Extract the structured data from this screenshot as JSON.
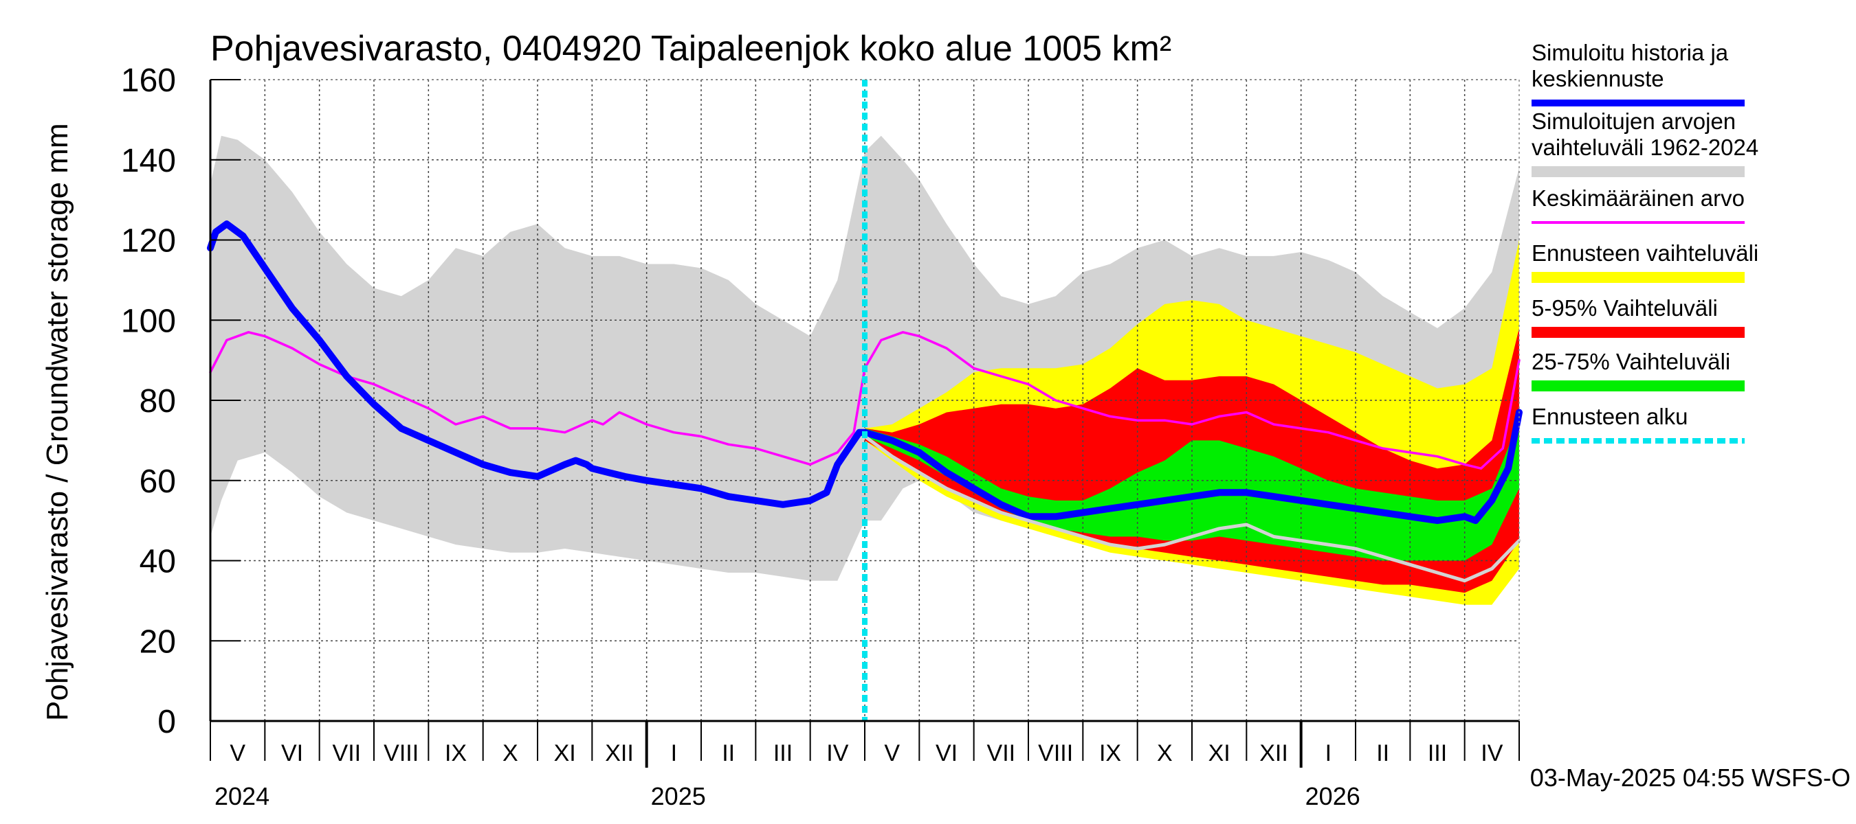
{
  "chart_data": {
    "type": "area",
    "title": "Pohjavesivarasto, 0404920 Taipaleenjok koko alue 1005 km²",
    "ylabel": "Pohjavesivarasto / Groundwater storage   mm",
    "ylim": [
      0,
      160
    ],
    "yticks": [
      0,
      20,
      40,
      60,
      80,
      100,
      120,
      140,
      160
    ],
    "x_range_months": [
      0,
      24
    ],
    "x_axis_note": "months since 2024-04-10",
    "forecast_start_month": 12,
    "month_labels": [
      "V",
      "VI",
      "VII",
      "VIII",
      "IX",
      "X",
      "XI",
      "XII",
      "I",
      "II",
      "III",
      "IV",
      "V",
      "VI",
      "VII",
      "VIII",
      "IX",
      "X",
      "XI",
      "XII",
      "I",
      "II",
      "III",
      "IV"
    ],
    "month_label_positions": [
      0.5,
      1.5,
      2.5,
      3.5,
      4.5,
      5.5,
      6.5,
      7.5,
      8.5,
      9.5,
      10.5,
      11.5,
      12.5,
      13.5,
      14.5,
      15.5,
      16.5,
      17.5,
      18.5,
      19.5,
      20.5,
      21.5,
      22.5,
      23.5
    ],
    "year_labels": [
      {
        "label": "2024",
        "month": 0
      },
      {
        "label": "2025",
        "month": 8
      },
      {
        "label": "2026",
        "month": 20
      }
    ],
    "year_separators": [
      8,
      20
    ],
    "timestamp": "03-May-2025 04:55 WSFS-O",
    "legend": [
      {
        "label": "Simuloitu historia ja keskiennuste",
        "lines": [
          "Simuloitu historia ja",
          "keskiennuste"
        ],
        "color": "#0000ff",
        "style": "thick"
      },
      {
        "label": "Simuloitujen arvojen vaihteluväli 1962-2024",
        "lines": [
          "Simuloitujen arvojen",
          "vaihteluväli 1962-2024"
        ],
        "color": "#d3d3d3",
        "style": "band"
      },
      {
        "label": "Keskimääräinen arvo",
        "lines": [
          "Keskimääräinen arvo"
        ],
        "color": "#ff00ff",
        "style": "line"
      },
      {
        "label": "Ennusteen vaihteluväli",
        "lines": [
          "Ennusteen vaihteluväli"
        ],
        "color": "#ffff00",
        "style": "band"
      },
      {
        "label": "5-95% Vaihteluväli",
        "lines": [
          "5-95% Vaihteluväli"
        ],
        "color": "#ff0000",
        "style": "band"
      },
      {
        "label": "25-75% Vaihteluväli",
        "lines": [
          "25-75% Vaihteluväli"
        ],
        "color": "#00ee00",
        "style": "band"
      },
      {
        "label": "Ennusteen alku",
        "lines": [
          "Ennusteen alku"
        ],
        "color": "#00e5ee",
        "style": "dashed"
      }
    ],
    "series": [
      {
        "name": "Simuloitujen arvojen vaihteluväli 1962-2024",
        "kind": "band",
        "color": "#d3d3d3",
        "x": [
          0,
          0.2,
          0.5,
          1,
          1.5,
          2,
          2.5,
          3,
          3.5,
          4,
          4.5,
          5,
          5.5,
          6,
          6.5,
          7,
          7.5,
          8,
          8.5,
          9,
          9.5,
          10,
          10.5,
          11,
          11.5,
          12,
          12.3,
          12.7,
          13,
          13.5,
          14,
          14.5,
          15,
          15.5,
          16,
          16.5,
          17,
          17.5,
          18,
          18.5,
          19,
          19.5,
          20,
          20.5,
          21,
          21.5,
          22,
          22.5,
          23,
          23.5,
          24
        ],
        "low": [
          46,
          55,
          65,
          67,
          62,
          56,
          52,
          50,
          48,
          46,
          44,
          43,
          42,
          42,
          43,
          42,
          41,
          40,
          39,
          38,
          37,
          37,
          36,
          35,
          35,
          50,
          50,
          58,
          60,
          57,
          52,
          50,
          49,
          48,
          48,
          48,
          48,
          48,
          48,
          48,
          48,
          48,
          48,
          48,
          48,
          48,
          48,
          48,
          52,
          60,
          62
        ],
        "high": [
          134,
          146,
          145,
          140,
          132,
          122,
          114,
          108,
          106,
          110,
          118,
          116,
          122,
          124,
          118,
          116,
          116,
          114,
          114,
          113,
          110,
          104,
          100,
          96,
          110,
          142,
          146,
          140,
          135,
          124,
          114,
          106,
          104,
          106,
          112,
          114,
          118,
          120,
          116,
          118,
          116,
          116,
          117,
          115,
          112,
          106,
          102,
          98,
          103,
          112,
          138
        ]
      },
      {
        "name": "Ennusteen vaihteluväli",
        "kind": "band",
        "color": "#ffff00",
        "x": [
          12,
          12.5,
          13,
          13.5,
          14,
          14.5,
          15,
          15.5,
          16,
          16.5,
          17,
          17.5,
          18,
          18.5,
          19,
          19.5,
          20,
          20.5,
          21,
          21.5,
          22,
          22.5,
          23,
          23.5,
          24
        ],
        "low": [
          70,
          65,
          60,
          56,
          53,
          50,
          48,
          46,
          44,
          42,
          41,
          40,
          39,
          38,
          37,
          36,
          35,
          34,
          33,
          32,
          31,
          30,
          29,
          29,
          38
        ],
        "high": [
          73,
          74,
          78,
          82,
          87,
          88,
          88,
          88,
          89,
          93,
          99,
          104,
          105,
          104,
          100,
          98,
          96,
          94,
          92,
          89,
          86,
          83,
          84,
          88,
          120
        ]
      },
      {
        "name": "5-95% Vaihteluväli",
        "kind": "band",
        "color": "#ff0000",
        "x": [
          12,
          12.5,
          13,
          13.5,
          14,
          14.5,
          15,
          15.5,
          16,
          16.5,
          17,
          17.5,
          18,
          18.5,
          19,
          19.5,
          20,
          20.5,
          21,
          21.5,
          22,
          22.5,
          23,
          23.5,
          24
        ],
        "low": [
          70,
          66,
          62,
          58,
          55,
          52,
          50,
          48,
          46,
          44,
          43,
          42,
          41,
          40,
          39,
          38,
          37,
          36,
          35,
          34,
          34,
          33,
          32,
          35,
          45
        ],
        "high": [
          73,
          72,
          74,
          77,
          78,
          79,
          79,
          78,
          79,
          83,
          88,
          85,
          85,
          86,
          86,
          84,
          80,
          76,
          72,
          68,
          65,
          63,
          64,
          70,
          98
        ]
      },
      {
        "name": "25-75% Vaihteluväli",
        "kind": "band",
        "color": "#00ee00",
        "x": [
          12,
          12.5,
          13,
          13.5,
          14,
          14.5,
          15,
          15.5,
          16,
          16.5,
          17,
          17.5,
          18,
          18.5,
          19,
          19.5,
          20,
          20.5,
          21,
          21.5,
          22,
          22.5,
          23,
          23.5,
          24
        ],
        "low": [
          71,
          68,
          65,
          61,
          57,
          53,
          50,
          48,
          47,
          46,
          46,
          45,
          45,
          46,
          45,
          44,
          43,
          42,
          41,
          40,
          40,
          40,
          40,
          44,
          58
        ],
        "high": [
          73,
          71,
          69,
          66,
          62,
          58,
          56,
          55,
          55,
          58,
          62,
          65,
          70,
          70,
          68,
          66,
          63,
          60,
          58,
          57,
          56,
          55,
          55,
          58,
          75
        ]
      },
      {
        "name": "Keskimääräinen arvo",
        "kind": "line",
        "color": "#ff00ff",
        "x": [
          0,
          0.3,
          0.7,
          1,
          1.5,
          2,
          2.5,
          3,
          3.5,
          4,
          4.5,
          5,
          5.5,
          6,
          6.5,
          7,
          7.2,
          7.5,
          8,
          8.5,
          9,
          9.5,
          10,
          10.5,
          11,
          11.5,
          11.8,
          12,
          12.3,
          12.7,
          13,
          13.5,
          14,
          14.5,
          15,
          15.5,
          16,
          16.5,
          17,
          17.5,
          18,
          18.5,
          19,
          19.5,
          20,
          20.5,
          21,
          21.5,
          22,
          22.5,
          23,
          23.3,
          23.7,
          24
        ],
        "values": [
          87,
          95,
          97,
          96,
          93,
          89,
          86,
          84,
          81,
          78,
          74,
          76,
          73,
          73,
          72,
          75,
          74,
          77,
          74,
          72,
          71,
          69,
          68,
          66,
          64,
          67,
          72,
          88,
          95,
          97,
          96,
          93,
          88,
          86,
          84,
          80,
          78,
          76,
          75,
          75,
          74,
          76,
          77,
          74,
          73,
          72,
          70,
          68,
          67,
          66,
          64,
          63,
          68,
          90
        ]
      },
      {
        "name": "Simuloitu historia ja keskiennuste",
        "kind": "line",
        "color": "#0000ff",
        "width": 10,
        "x": [
          0,
          0.1,
          0.3,
          0.6,
          1,
          1.5,
          2,
          2.5,
          3,
          3.5,
          4,
          4.5,
          5,
          5.5,
          6,
          6.5,
          6.7,
          6.9,
          7.0,
          7.3,
          7.6,
          8,
          8.5,
          9,
          9.5,
          10,
          10.5,
          11,
          11.3,
          11.5,
          11.7,
          11.9,
          12,
          12.5,
          13,
          13.5,
          14,
          14.5,
          15,
          15.5,
          16,
          16.5,
          17,
          17.5,
          18,
          18.5,
          19,
          19.5,
          20,
          20.5,
          21,
          21.5,
          22,
          22.5,
          23,
          23.2,
          23.5,
          23.8,
          24
        ],
        "values": [
          118,
          122,
          124,
          121,
          113,
          103,
          95,
          86,
          79,
          73,
          70,
          67,
          64,
          62,
          61,
          64,
          65,
          64,
          63,
          62,
          61,
          60,
          59,
          58,
          56,
          55,
          54,
          55,
          57,
          64,
          68,
          72,
          72,
          70,
          67,
          62,
          58,
          54,
          51,
          51,
          52,
          53,
          54,
          55,
          56,
          57,
          57,
          56,
          55,
          54,
          53,
          52,
          51,
          50,
          51,
          50,
          55,
          63,
          77
        ]
      },
      {
        "name": "Forecast low reference",
        "kind": "line",
        "color": "#d3d3d3",
        "width": 5,
        "x": [
          12,
          12.5,
          13,
          13.5,
          14,
          14.5,
          15,
          15.5,
          16,
          16.5,
          17,
          17.5,
          18,
          18.5,
          19,
          19.5,
          20,
          20.5,
          21,
          21.5,
          22,
          22.5,
          23,
          23.5,
          24
        ],
        "values": [
          71,
          66,
          62,
          58,
          55,
          52,
          50,
          48,
          46,
          44,
          43,
          44,
          46,
          48,
          49,
          46,
          45,
          44,
          43,
          41,
          39,
          37,
          35,
          38,
          45
        ]
      }
    ]
  }
}
